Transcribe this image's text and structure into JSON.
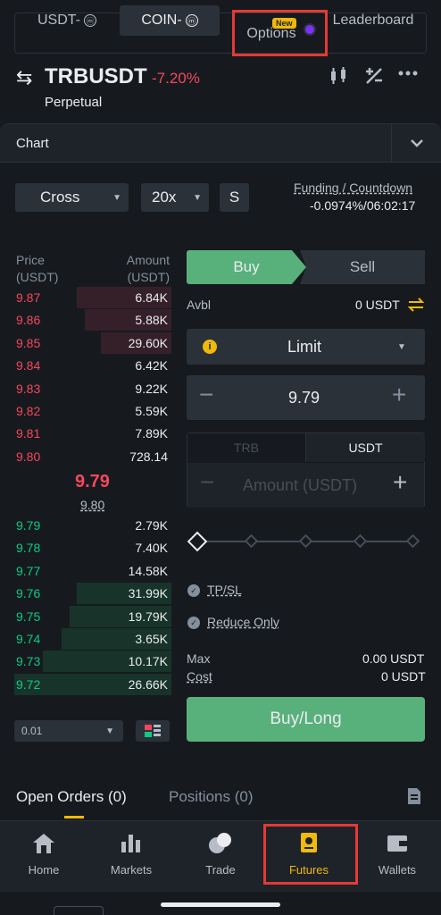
{
  "top_tabs": [
    {
      "label": "USDT-",
      "badge": "ⓜ"
    },
    {
      "label": "COIN-",
      "badge": "ⓜ"
    },
    {
      "label": "Options",
      "new_badge": "New"
    },
    {
      "label": "Leaderboard"
    }
  ],
  "header": {
    "symbol": "TRBUSDT",
    "change": "-7.20%",
    "subtitle": "Perpetual",
    "swap_icon": "⇆"
  },
  "chart_bar": {
    "label": "Chart"
  },
  "controls": {
    "margin_mode": "Cross",
    "leverage": "20x",
    "mode_short": "S",
    "funding_label": "Funding / Countdown",
    "funding_value": "-0.0974%/06:02:17"
  },
  "order_book": {
    "price_header": "Price",
    "price_unit": "(USDT)",
    "amount_header": "Amount",
    "amount_unit": "(USDT)",
    "asks": [
      {
        "price": "9.87",
        "amount": "6.84K",
        "depth": 0.6
      },
      {
        "price": "9.86",
        "amount": "5.88K",
        "depth": 0.55
      },
      {
        "price": "9.85",
        "amount": "29.60K",
        "depth": 0.45
      },
      {
        "price": "9.84",
        "amount": "6.42K",
        "depth": 0
      },
      {
        "price": "9.83",
        "amount": "9.22K",
        "depth": 0
      },
      {
        "price": "9.82",
        "amount": "5.59K",
        "depth": 0
      },
      {
        "price": "9.81",
        "amount": "7.89K",
        "depth": 0
      },
      {
        "price": "9.80",
        "amount": "728.14",
        "depth": 0
      }
    ],
    "mid_price": "9.79",
    "mark_price": "9.80",
    "bids": [
      {
        "price": "9.79",
        "amount": "2.79K",
        "depth": 0
      },
      {
        "price": "9.78",
        "amount": "7.40K",
        "depth": 0
      },
      {
        "price": "9.77",
        "amount": "14.58K",
        "depth": 0
      },
      {
        "price": "9.76",
        "amount": "31.99K",
        "depth": 0.6
      },
      {
        "price": "9.75",
        "amount": "19.79K",
        "depth": 0.65
      },
      {
        "price": "9.74",
        "amount": "3.65K",
        "depth": 0.7
      },
      {
        "price": "9.73",
        "amount": "10.17K",
        "depth": 0.82
      },
      {
        "price": "9.72",
        "amount": "26.66K",
        "depth": 1.0
      }
    ],
    "precision": "0.01"
  },
  "order_form": {
    "buy_label": "Buy",
    "sell_label": "Sell",
    "avbl_label": "Avbl",
    "avbl_value": "0 USDT",
    "order_type": "Limit",
    "price_value": "9.79",
    "unit_left": "TRB",
    "unit_right": "USDT",
    "amount_placeholder": "Amount (USDT)",
    "tpsl_label": "TP/SL",
    "reduce_only_label": "Reduce Only",
    "max_label": "Max",
    "max_value": "0.00 USDT",
    "cost_label": "Cost",
    "cost_value": "0 USDT",
    "submit_label": "Buy/Long"
  },
  "orders_tabs": {
    "open_orders": "Open Orders (0)",
    "positions": "Positions (0)"
  },
  "bottom_nav": [
    {
      "label": "Home",
      "icon": "home-icon"
    },
    {
      "label": "Markets",
      "icon": "markets-icon"
    },
    {
      "label": "Trade",
      "icon": "trade-icon"
    },
    {
      "label": "Futures",
      "icon": "futures-icon",
      "active": true
    },
    {
      "label": "Wallets",
      "icon": "wallet-icon"
    }
  ],
  "colors": {
    "buy": "#58b07b",
    "sell": "#f6465d",
    "accent": "#f0b90b",
    "bg": "#161a1e"
  }
}
